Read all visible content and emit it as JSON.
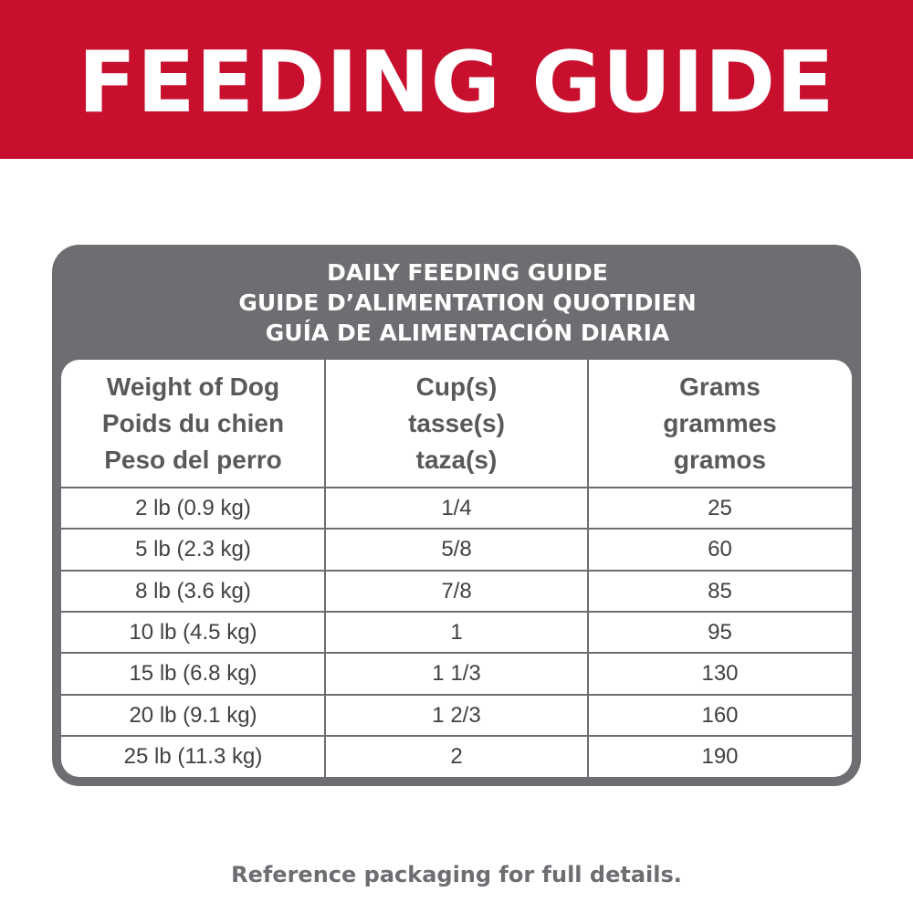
{
  "banner": {
    "title": "FEEDING GUIDE",
    "color": "#c8102e"
  },
  "card": {
    "title_lines": [
      "DAILY FEEDING GUIDE",
      "GUIDE D’ALIMENTATION QUOTIDIEN",
      "GUÍA DE ALIMENTACIÓN DIARIA"
    ],
    "color": "#6d6e71"
  },
  "table": {
    "headers": [
      [
        "Weight of Dog",
        "Poids du chien",
        "Peso del perro"
      ],
      [
        "Cup(s)",
        "tasse(s)",
        "taza(s)"
      ],
      [
        "Grams",
        "grammes",
        "gramos"
      ]
    ],
    "rows": [
      [
        "2 lb (0.9 kg)",
        "1/4",
        "25"
      ],
      [
        "5 lb (2.3 kg)",
        "5/8",
        "60"
      ],
      [
        "8 lb (3.6 kg)",
        "7/8",
        "85"
      ],
      [
        "10 lb (4.5 kg)",
        "1",
        "95"
      ],
      [
        "15 lb (6.8 kg)",
        "1 1/3",
        "130"
      ],
      [
        "20 lb (9.1 kg)",
        "1 2/3",
        "160"
      ],
      [
        "25 lb (11.3 kg)",
        "2",
        "190"
      ]
    ]
  },
  "footer": {
    "text": "Reference packaging for full details."
  }
}
